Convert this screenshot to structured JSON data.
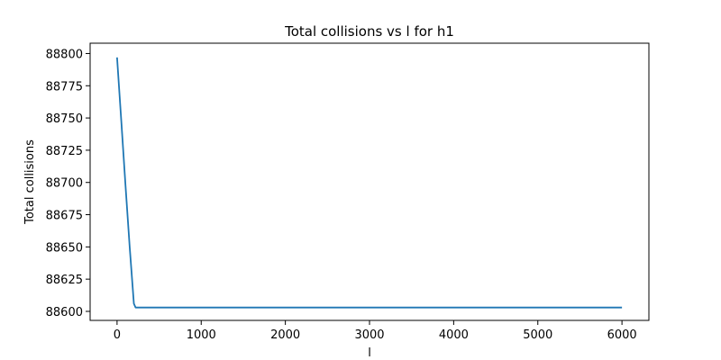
{
  "chart_data": {
    "type": "line",
    "title": "Total collisions vs l for h1",
    "xlabel": "l",
    "ylabel": "Total collisions",
    "xlim": [
      -320,
      6320
    ],
    "ylim": [
      88593,
      88808
    ],
    "xticks": [
      0,
      1000,
      2000,
      3000,
      4000,
      5000,
      6000
    ],
    "yticks": [
      88600,
      88625,
      88650,
      88675,
      88700,
      88725,
      88750,
      88775,
      88800
    ],
    "grid": false,
    "legend": "none",
    "series": [
      {
        "color": "#1f77b4",
        "x": [
          0,
          50,
          100,
          150,
          200,
          220,
          250,
          300,
          500,
          1000,
          2000,
          3000,
          4000,
          5000,
          6000
        ],
        "y": [
          88797,
          88748,
          88698,
          88650,
          88606,
          88603,
          88603,
          88603,
          88603,
          88603,
          88603,
          88603,
          88603,
          88603,
          88603
        ]
      }
    ]
  }
}
